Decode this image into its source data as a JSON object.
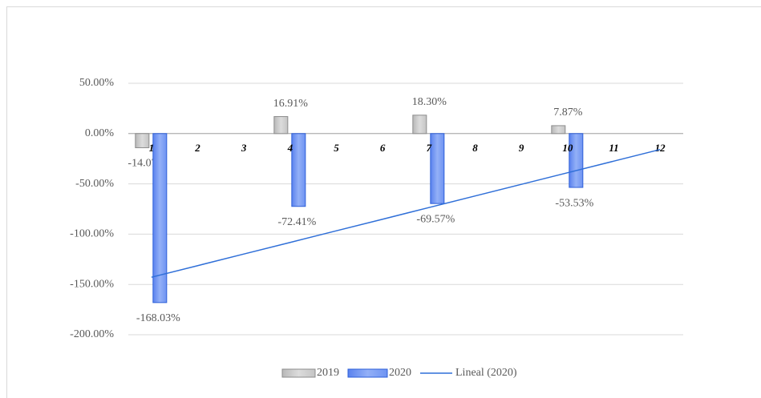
{
  "chart_data": {
    "type": "bar",
    "categories": [
      "1",
      "2",
      "3",
      "4",
      "5",
      "6",
      "7",
      "8",
      "9",
      "10",
      "11",
      "12"
    ],
    "series": [
      {
        "name": "2019",
        "color": "#c8c8c8",
        "values": [
          -14.07,
          null,
          null,
          16.91,
          null,
          null,
          18.3,
          null,
          null,
          7.87,
          null,
          null
        ],
        "value_labels": [
          "-14.07%",
          null,
          null,
          "16.91%",
          null,
          null,
          "18.30%",
          null,
          null,
          "7.87%",
          null,
          null
        ]
      },
      {
        "name": "2020",
        "color": "#6e93f2",
        "values": [
          -168.03,
          null,
          null,
          -72.41,
          null,
          null,
          -69.57,
          null,
          null,
          -53.53,
          null,
          null
        ],
        "value_labels": [
          "-168.03%",
          null,
          null,
          "-72.41%",
          null,
          null,
          "-69.57%",
          null,
          null,
          "-53.53%",
          null,
          null
        ]
      },
      {
        "name": "Lineal (2020)",
        "type": "line",
        "color": "#2f6fd8",
        "values": [
          -142.84,
          -131.3,
          -119.75,
          -108.21,
          -96.66,
          -85.12,
          -73.57,
          -62.03,
          -50.48,
          -38.94,
          -27.39,
          -15.85
        ]
      }
    ],
    "ylim": [
      -200,
      50
    ],
    "yticks": [
      {
        "value": 50,
        "label": "50.00%"
      },
      {
        "value": 0,
        "label": "0.00%"
      },
      {
        "value": -50,
        "label": "-50.00%"
      },
      {
        "value": -100,
        "label": "-100.00%"
      },
      {
        "value": -150,
        "label": "-150.00%"
      },
      {
        "value": -200,
        "label": "-200.00%"
      }
    ],
    "grid": true,
    "legend": "bottom"
  }
}
